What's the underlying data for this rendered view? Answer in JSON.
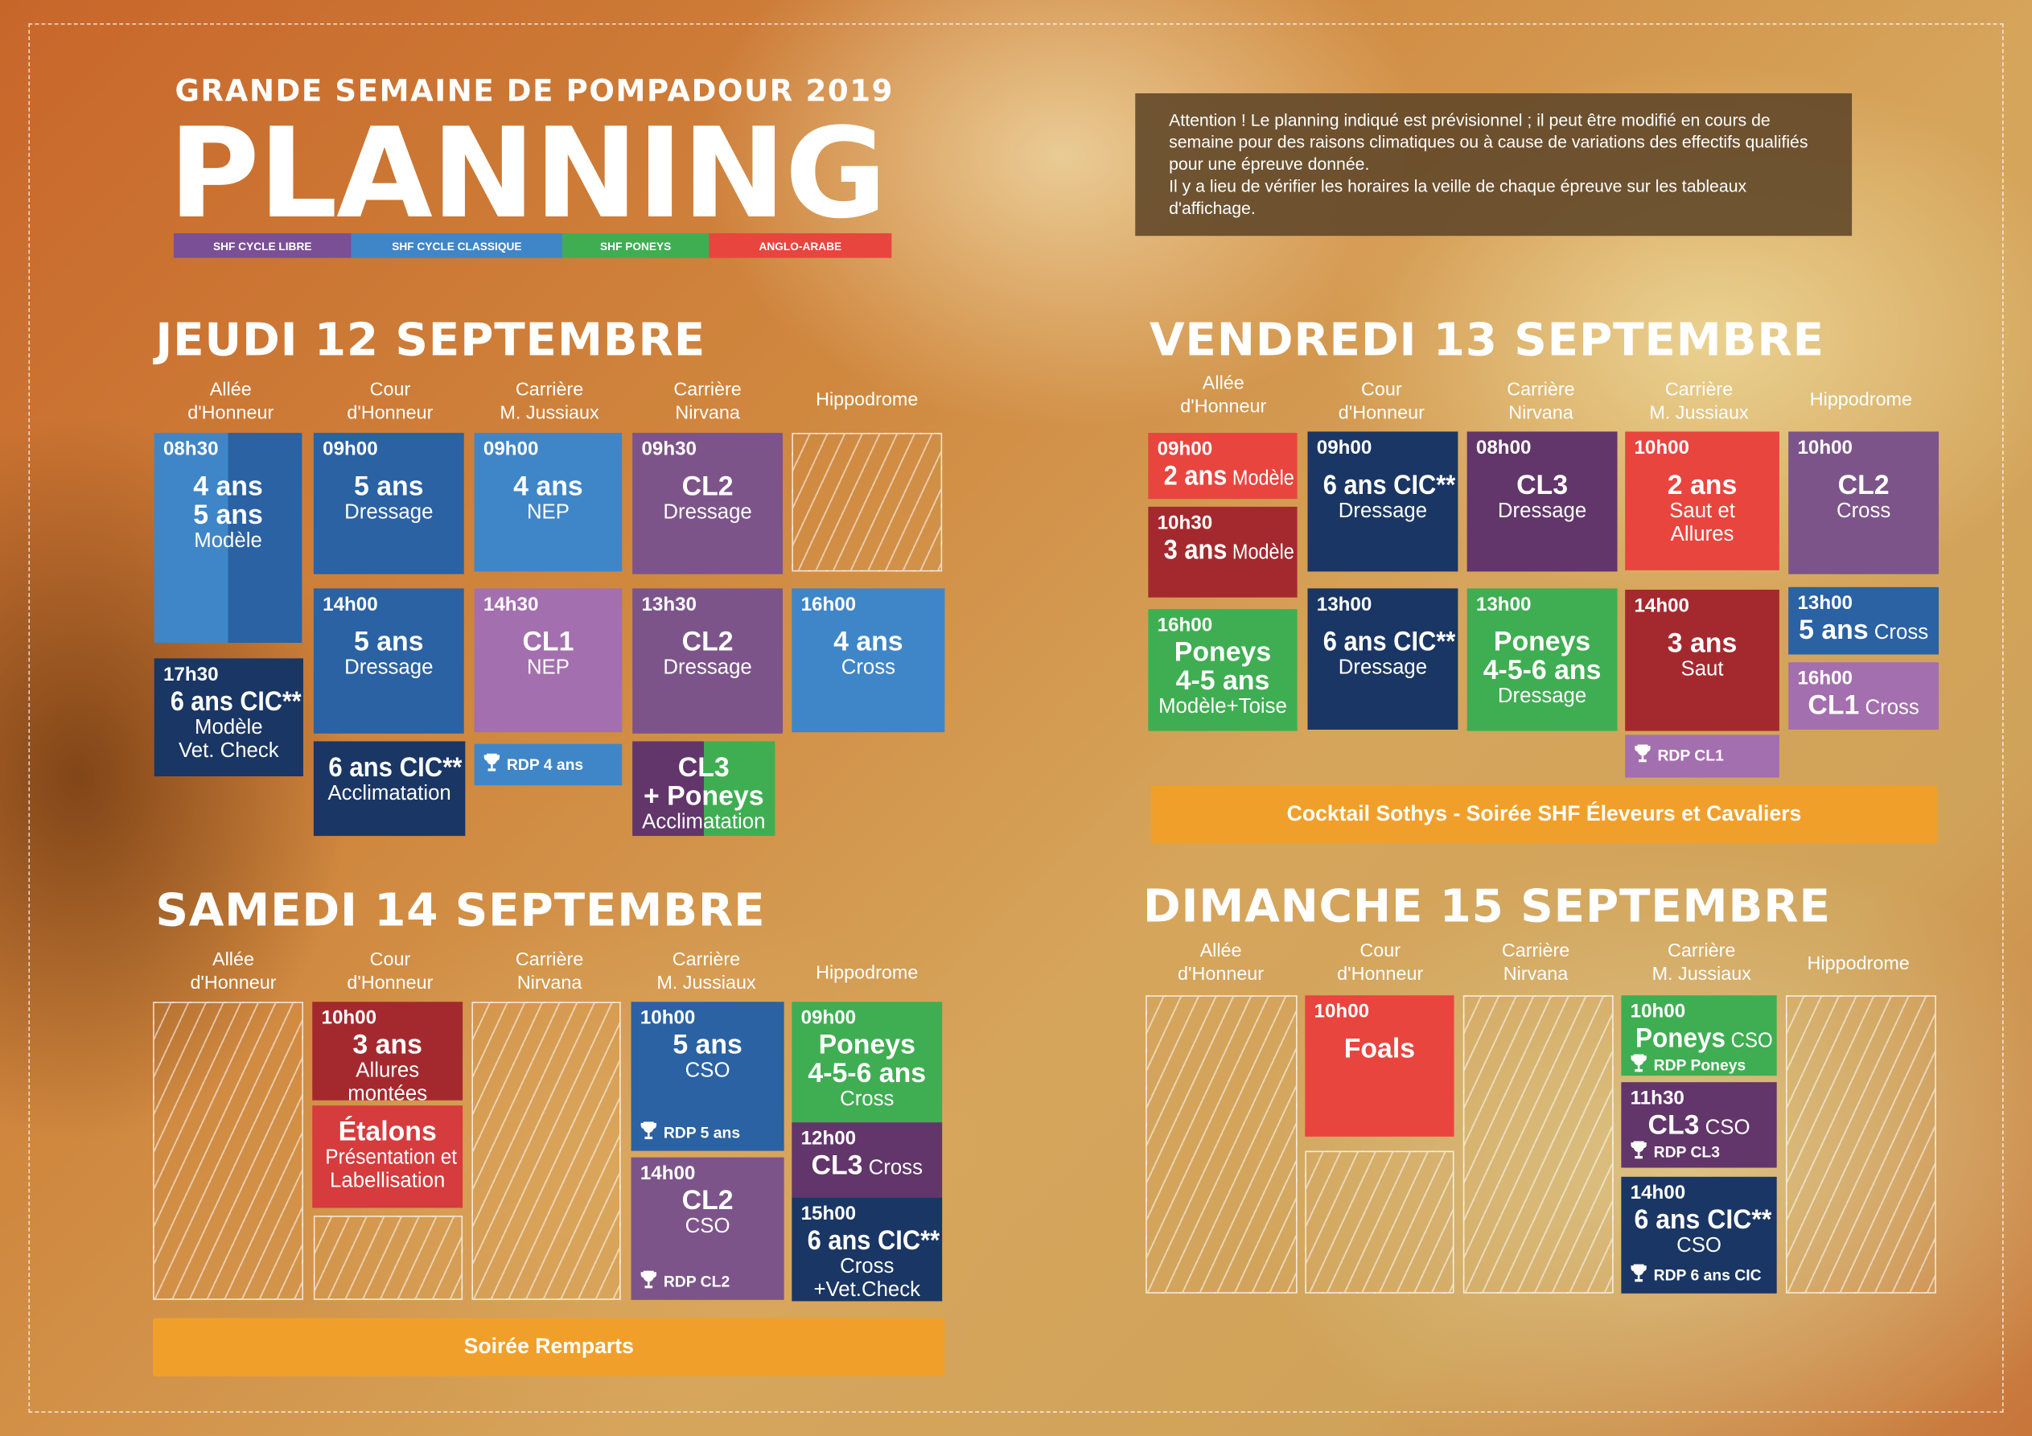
{
  "header": {
    "supertitle": "GRANDE SEMAINE DE POMPADOUR 2019",
    "title": "PLANNING"
  },
  "legend": [
    {
      "label": "SHF CYCLE LIBRE",
      "color": "#7b4f96"
    },
    {
      "label": "SHF CYCLE CLASSIQUE",
      "color": "#3f86c8"
    },
    {
      "label": "SHF PONEYS",
      "color": "#3fae52"
    },
    {
      "label": "ANGLO-ARABE",
      "color": "#e8453f"
    }
  ],
  "notice": {
    "line1": "Attention ! Le planning indiqué est prévisionnel ; il peut être modifié en cours de semaine pour des raisons climatiques ou à cause de variations des effectifs qualifiés pour une épreuve donnée.",
    "line2": "Il y a lieu de vérifier les horaires la veille de chaque épreuve sur les tableaux d'affichage."
  },
  "colors": {
    "lightblue": "#3f86c8",
    "blue": "#2a62a3",
    "navy": "#1a3664",
    "purple": "#7c548a",
    "lilac": "#a46fae",
    "plum": "#62356b",
    "green": "#3fae52",
    "red": "#e8453f",
    "darkred": "#a4292e",
    "orange": "#f0a02a"
  },
  "days": [
    {
      "title": "JEUDI 12 SEPTEMBRE",
      "columns": [
        "Allée\nd'Honneur",
        "Cour\nd'Honneur",
        "Carrière\nM. Jussiaux",
        "Carrière\nNirvana",
        "Hippodrome"
      ],
      "events": [
        {
          "time": "08h30",
          "color": "split-blue",
          "lines": [
            {
              "b": "4 ans"
            },
            {
              "b": "5 ans"
            },
            {
              "r": "Modèle"
            }
          ]
        },
        {
          "time": "17h30",
          "color": "#1a3664",
          "lines": [
            {
              "b": "6 ans CIC**"
            },
            {
              "r": "Modèle"
            },
            {
              "r": "Vet. Check"
            }
          ]
        },
        {
          "time": "09h00",
          "color": "#2a62a3",
          "lines": [
            {
              "b": "5 ans"
            },
            {
              "r": "Dressage"
            }
          ]
        },
        {
          "time": "14h00",
          "color": "#2a62a3",
          "lines": [
            {
              "b": "5 ans"
            },
            {
              "r": "Dressage"
            }
          ]
        },
        {
          "time": "",
          "color": "#1a3664",
          "lines": [
            {
              "b": "6 ans CIC**"
            },
            {
              "r": "Acclimatation"
            }
          ]
        },
        {
          "time": "09h00",
          "color": "#3f86c8",
          "lines": [
            {
              "b": "4 ans"
            },
            {
              "r": "NEP"
            }
          ]
        },
        {
          "time": "14h30",
          "color": "#a46fae",
          "lines": [
            {
              "b": "CL1"
            },
            {
              "r": "NEP"
            }
          ]
        },
        {
          "time": "",
          "color": "#3f86c8",
          "lines": [],
          "rdp": "RDP 4 ans"
        },
        {
          "time": "09h30",
          "color": "#7c548a",
          "lines": [
            {
              "b": "CL2"
            },
            {
              "r": "Dressage"
            }
          ]
        },
        {
          "time": "13h30",
          "color": "#7c548a",
          "lines": [
            {
              "b": "CL2"
            },
            {
              "r": "Dressage"
            }
          ]
        },
        {
          "time": "",
          "color": "split-plum-green",
          "lines": [
            {
              "b": "CL3"
            },
            {
              "b": "+ Poneys"
            },
            {
              "r": "Acclimatation"
            }
          ]
        },
        {
          "time": "16h00",
          "color": "#3f86c8",
          "lines": [
            {
              "b": "4 ans"
            },
            {
              "r": "Cross"
            }
          ]
        }
      ]
    },
    {
      "title": "VENDREDI 13 SEPTEMBRE",
      "columns": [
        "Allée\nd'Honneur",
        "Cour\nd'Honneur",
        "Carrière\nNirvana",
        "Carrière\nM. Jussiaux",
        "Hippodrome"
      ],
      "events": [
        {
          "time": "09h00",
          "color": "#e8453f",
          "lines": [
            {
              "b": "2 ans",
              "r": "Modèle"
            }
          ]
        },
        {
          "time": "10h30",
          "color": "#a4292e",
          "lines": [
            {
              "b": "3 ans",
              "r": "Modèle"
            }
          ]
        },
        {
          "time": "16h00",
          "color": "#3fae52",
          "lines": [
            {
              "b": "Poneys"
            },
            {
              "b": "4-5 ans"
            },
            {
              "r": "Modèle+Toise"
            }
          ]
        },
        {
          "time": "09h00",
          "color": "#1a3664",
          "lines": [
            {
              "b": "6 ans CIC**"
            },
            {
              "r": "Dressage"
            }
          ]
        },
        {
          "time": "13h00",
          "color": "#1a3664",
          "lines": [
            {
              "b": "6 ans CIC**"
            },
            {
              "r": "Dressage"
            }
          ]
        },
        {
          "time": "08h00",
          "color": "#62356b",
          "lines": [
            {
              "b": "CL3"
            },
            {
              "r": "Dressage"
            }
          ]
        },
        {
          "time": "13h00",
          "color": "#3fae52",
          "lines": [
            {
              "b": "Poneys"
            },
            {
              "b": "4-5-6 ans"
            },
            {
              "r": "Dressage"
            }
          ]
        },
        {
          "time": "10h00",
          "color": "#e8453f",
          "lines": [
            {
              "b": "2 ans"
            },
            {
              "r": "Saut et"
            },
            {
              "r": "Allures"
            }
          ]
        },
        {
          "time": "14h00",
          "color": "#a4292e",
          "lines": [
            {
              "b": "3 ans"
            },
            {
              "r": "Saut"
            }
          ]
        },
        {
          "time": "",
          "color": "#a46fae",
          "lines": [],
          "rdp": "RDP CL1"
        },
        {
          "time": "10h00",
          "color": "#7c548a",
          "lines": [
            {
              "b": "CL2"
            },
            {
              "r": "Cross"
            }
          ]
        },
        {
          "time": "13h00",
          "color": "#2a62a3",
          "lines": [
            {
              "b": "5 ans",
              "r": "Cross"
            }
          ]
        },
        {
          "time": "16h00",
          "color": "#a46fae",
          "lines": [
            {
              "b": "CL1",
              "r": "Cross"
            }
          ]
        }
      ],
      "bar": "Cocktail Sothys - Soirée SHF Éleveurs et Cavaliers"
    },
    {
      "title": "SAMEDI 14 SEPTEMBRE",
      "columns": [
        "Allée\nd'Honneur",
        "Cour\nd'Honneur",
        "Carrière\nNirvana",
        "Carrière\nM. Jussiaux",
        "Hippodrome"
      ],
      "events": [
        {
          "time": "10h00",
          "color": "#a4292e",
          "lines": [
            {
              "b": "3 ans"
            },
            {
              "r": "Allures"
            },
            {
              "r": "montées"
            }
          ]
        },
        {
          "time": "",
          "color": "#d63b3d",
          "lines": [
            {
              "b": "Étalons"
            },
            {
              "r": "Présentation et"
            },
            {
              "r": "Labellisation"
            }
          ]
        },
        {
          "time": "10h00",
          "color": "#2a62a3",
          "lines": [
            {
              "b": "5 ans"
            },
            {
              "r": "CSO"
            }
          ],
          "rdp": "RDP 5 ans"
        },
        {
          "time": "14h00",
          "color": "#7c548a",
          "lines": [
            {
              "b": "CL2"
            },
            {
              "r": "CSO"
            }
          ],
          "rdp": "RDP CL2"
        },
        {
          "time": "09h00",
          "color": "#3fae52",
          "lines": [
            {
              "b": "Poneys"
            },
            {
              "b": "4-5-6 ans"
            },
            {
              "r": "Cross"
            }
          ]
        },
        {
          "time": "12h00",
          "color": "#62356b",
          "lines": [
            {
              "b": "CL3",
              "r": "Cross"
            }
          ]
        },
        {
          "time": "15h00",
          "color": "#1a3664",
          "lines": [
            {
              "b": "6 ans CIC**"
            },
            {
              "r": "Cross"
            },
            {
              "r": "+Vet.Check"
            }
          ]
        }
      ],
      "bar": "Soirée Remparts"
    },
    {
      "title": "DIMANCHE 15 SEPTEMBRE",
      "columns": [
        "Allée\nd'Honneur",
        "Cour\nd'Honneur",
        "Carrière\nNirvana",
        "Carrière\nM. Jussiaux",
        "Hippodrome"
      ],
      "events": [
        {
          "time": "10h00",
          "color": "#e8453f",
          "lines": [
            {
              "b": "Foals"
            }
          ]
        },
        {
          "time": "10h00",
          "color": "#3fae52",
          "lines": [
            {
              "b": "Poneys",
              "r": "CSO"
            }
          ],
          "rdp": "RDP Poneys"
        },
        {
          "time": "11h30",
          "color": "#62356b",
          "lines": [
            {
              "b": "CL3",
              "r": "CSO"
            }
          ],
          "rdp": "RDP CL3"
        },
        {
          "time": "14h00",
          "color": "#1a3664",
          "lines": [
            {
              "b": "6 ans CIC**"
            },
            {
              "r": "CSO"
            }
          ],
          "rdp": "RDP 6 ans CIC"
        }
      ]
    }
  ]
}
